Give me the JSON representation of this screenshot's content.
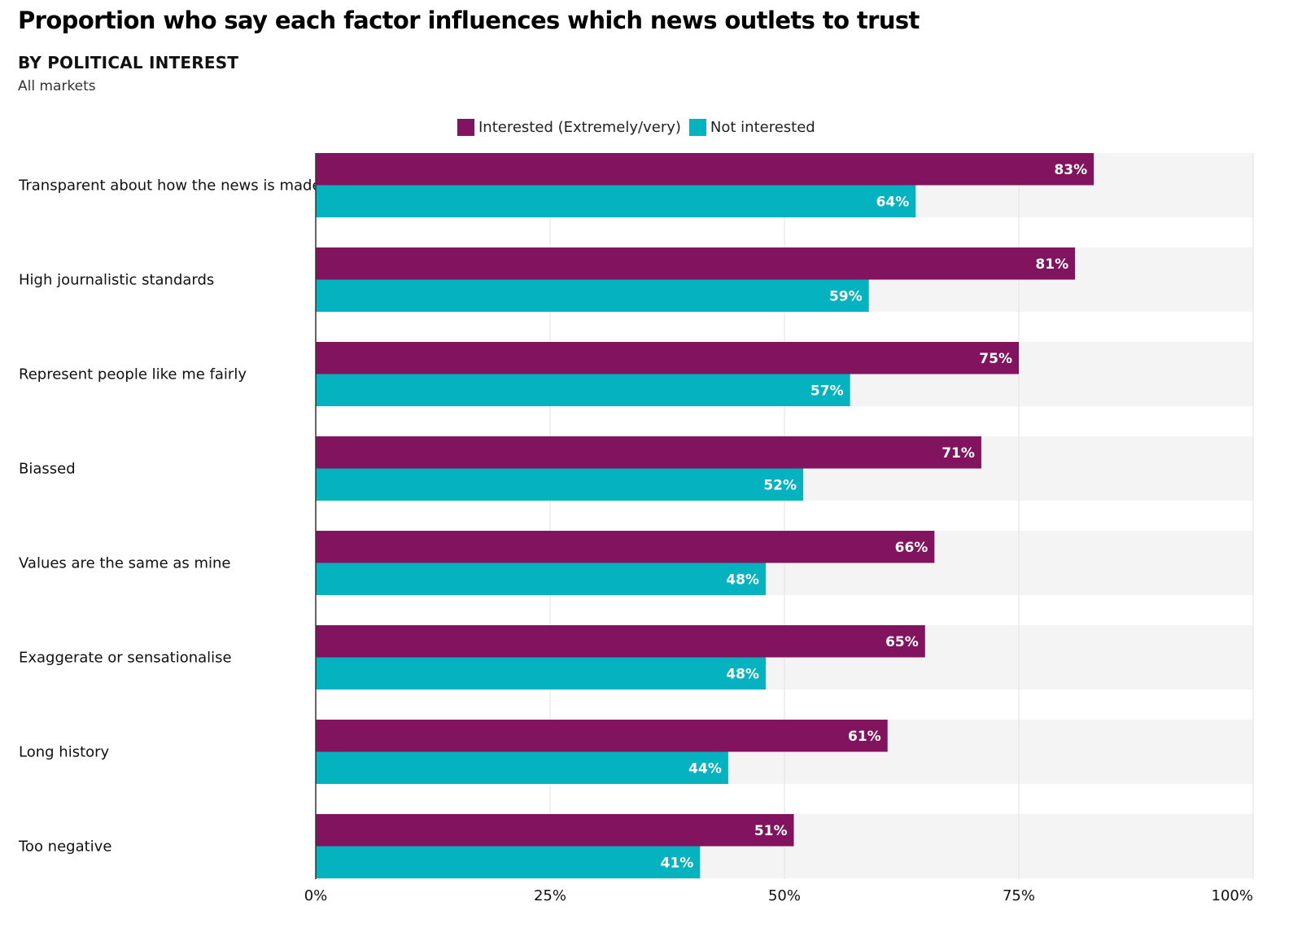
{
  "chart_data": {
    "type": "bar",
    "orientation": "horizontal",
    "title": "Proportion who say each factor influences which news outlets to trust",
    "subtitle": "BY POLITICAL INTEREST",
    "note": "All markets",
    "legend_position": "top-center",
    "categories": [
      "Transparent about how the news is made",
      "High journalistic standards",
      "Represent people like me fairly",
      "Biassed",
      "Values are the same as mine",
      "Exaggerate or sensationalise",
      "Long history",
      "Too negative"
    ],
    "series": [
      {
        "name": "Interested (Extremely/very)",
        "color": "#82135e",
        "values": [
          83,
          81,
          75,
          71,
          66,
          65,
          61,
          51
        ],
        "labels": [
          "83%",
          "81%",
          "75%",
          "71%",
          "66%",
          "65%",
          "61%",
          "51%"
        ]
      },
      {
        "name": "Not interested",
        "color": "#05b2bf",
        "values": [
          64,
          59,
          57,
          52,
          48,
          48,
          44,
          41
        ],
        "labels": [
          "64%",
          "59%",
          "57%",
          "52%",
          "48%",
          "48%",
          "44%",
          "41%"
        ]
      }
    ],
    "xlim": [
      0,
      100
    ],
    "xticks": [
      0,
      25,
      50,
      75,
      100
    ],
    "xtick_labels": [
      "0%",
      "25%",
      "50%",
      "75%",
      "100%"
    ],
    "grid": true,
    "band_color": "#f4f4f4",
    "grid_color": "#e2e2e2"
  }
}
